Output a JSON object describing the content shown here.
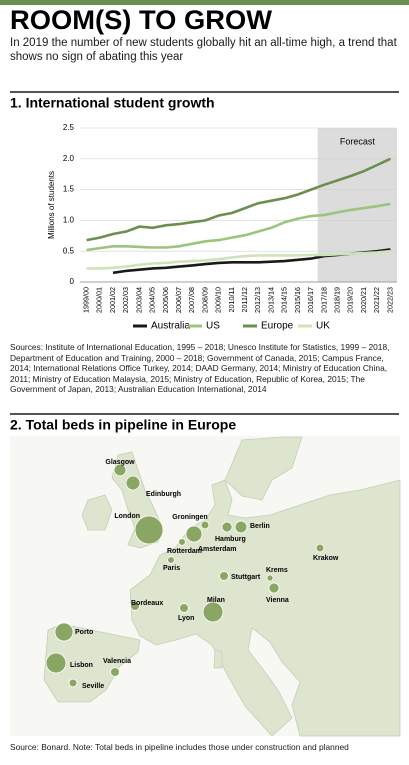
{
  "header": {
    "title": "ROOM(S) TO GROW",
    "subtitle": "In 2019 the number of new students globally hit an all-time high, a trend that shows no sign of abating this year"
  },
  "chart_data": [
    {
      "type": "line",
      "title": "1. International student growth",
      "ylabel": "Millions of students",
      "categories": [
        "1999/00",
        "2000/01",
        "2001/02",
        "2002/03",
        "2003/04",
        "2004/05",
        "2005/06",
        "2006/07",
        "2007/08",
        "2008/09",
        "2009/10",
        "2010/11",
        "2011/12",
        "2012/13",
        "2013/14",
        "2014/15",
        "2015/16",
        "2016/17",
        "2017/18",
        "2018/19",
        "2019/20",
        "2020/21",
        "2021/22",
        "2022/23"
      ],
      "series": [
        {
          "name": "Australia",
          "color": "#1a1a1a",
          "values": [
            null,
            null,
            0.15,
            0.18,
            0.2,
            0.22,
            0.23,
            0.25,
            0.27,
            0.29,
            0.31,
            0.32,
            0.32,
            0.32,
            0.33,
            0.34,
            0.36,
            0.38,
            0.42,
            0.44,
            0.46,
            0.48,
            0.5,
            0.53
          ]
        },
        {
          "name": "US",
          "color": "#9cc47a",
          "values": [
            0.52,
            0.55,
            0.58,
            0.58,
            0.57,
            0.56,
            0.56,
            0.58,
            0.62,
            0.66,
            0.68,
            0.72,
            0.76,
            0.82,
            0.88,
            0.97,
            1.03,
            1.07,
            1.09,
            1.13,
            1.17,
            1.2,
            1.23,
            1.27
          ]
        },
        {
          "name": "Europe",
          "color": "#6b8f4e",
          "values": [
            0.68,
            0.72,
            0.78,
            0.82,
            0.9,
            0.88,
            0.92,
            0.94,
            0.97,
            1.0,
            1.08,
            1.12,
            1.2,
            1.28,
            1.32,
            1.36,
            1.42,
            1.5,
            1.58,
            1.65,
            1.72,
            1.8,
            1.9,
            2.0
          ]
        },
        {
          "name": "UK",
          "color": "#cfe3b8",
          "values": [
            0.22,
            0.22,
            0.23,
            0.25,
            0.28,
            0.3,
            0.31,
            0.33,
            0.34,
            0.35,
            0.37,
            0.4,
            0.42,
            0.43,
            0.43,
            0.43,
            0.43,
            0.44,
            0.44,
            0.45,
            0.46,
            0.47,
            0.48,
            0.5
          ]
        }
      ],
      "ylim": [
        0,
        2.5
      ],
      "yticks": [
        0,
        0.5,
        {
          "value": 1,
          "label": "1.0"
        },
        1.5,
        {
          "value": 2,
          "label": "2.0"
        },
        2.5
      ],
      "grid": true,
      "forecast": {
        "label": "Forecast",
        "start": "2017/18",
        "color": "#dcdcdc"
      }
    },
    {
      "type": "map",
      "title": "2. Total beds in pipeline in Europe",
      "categories": [
        "Glasgow",
        "Edinburgh",
        "London",
        "Groningen",
        "Hamburg",
        "Berlin",
        "Rotterdam",
        "Amsterdam",
        "Paris",
        "Krakow",
        "Stuttgart",
        "Krems",
        "Vienna",
        "Bordeaux",
        "Lyon",
        "Milan",
        "Porto",
        "Lisbon",
        "Valencia",
        "Seville"
      ],
      "values": [
        1800,
        2500,
        10000,
        800,
        1300,
        1800,
        600,
        3300,
        600,
        800,
        1000,
        500,
        1300,
        1000,
        1000,
        5100,
        4200,
        5100,
        1000,
        800
      ],
      "color": "#8aa663"
    }
  ],
  "sources": "Sources: Institute of International Education, 1995 – 2018; Unesco Institute for Statistics, 1999 – 2018, Department of Education and Training, 2000 – 2018; Government of Canada, 2015; Campus France, 2014; International Relations Office Turkey, 2014; DAAD Germany, 2014; Ministry of Education China, 2011; Ministry of Education Malaysia, 2015; Ministry of Education, Republic of Korea, 2015; The Government of Japan, 2013; Australian Education International, 2014",
  "note": "Source: Bonard. Note: Total beds in pipeline includes those under construction and planned"
}
